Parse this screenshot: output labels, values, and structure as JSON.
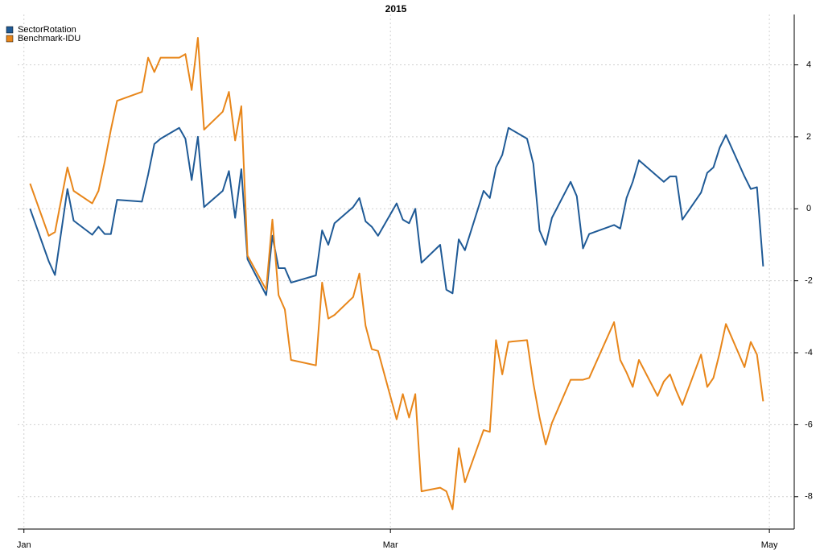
{
  "chart_data": {
    "type": "line",
    "title": "2015",
    "x": [
      2,
      5,
      6,
      8,
      9,
      12,
      13,
      14,
      15,
      16,
      20,
      21,
      22,
      23,
      26,
      27,
      28,
      29,
      30,
      33,
      34,
      35,
      36,
      37,
      40,
      41,
      42,
      43,
      44,
      48,
      49,
      50,
      51,
      54,
      55,
      56,
      57,
      58,
      61,
      62,
      63,
      64,
      65,
      68,
      69,
      70,
      71,
      72,
      75,
      76,
      77,
      78,
      79,
      82,
      83,
      84,
      85,
      86,
      89,
      90,
      91,
      92,
      96,
      97,
      98,
      99,
      100,
      103,
      104,
      105,
      106,
      107,
      110,
      111,
      112,
      113,
      114,
      117,
      118,
      119,
      120
    ],
    "series": [
      {
        "name": "SectorRotation",
        "color": "#1f5a96",
        "values": [
          0,
          -1.46,
          -1.84,
          0.55,
          -0.33,
          -0.72,
          -0.5,
          -0.7,
          -0.7,
          0.25,
          0.2,
          0.95,
          1.8,
          1.95,
          2.25,
          1.95,
          0.8,
          2.0,
          0.05,
          0.5,
          1.05,
          -0.25,
          1.1,
          -1.4,
          -2.4,
          -0.75,
          -1.65,
          -1.65,
          -2.05,
          -1.85,
          -0.6,
          -1.0,
          -0.4,
          0.05,
          0.3,
          -0.35,
          -0.5,
          -0.75,
          0.15,
          -0.3,
          -0.4,
          0,
          -1.5,
          -1.0,
          -2.25,
          -2.35,
          -0.85,
          -1.15,
          0.5,
          0.3,
          1.15,
          1.5,
          2.25,
          1.95,
          1.25,
          -0.6,
          -1.0,
          -0.25,
          0.75,
          0.35,
          -1.1,
          -0.7,
          -0.45,
          -0.55,
          0.3,
          0.75,
          1.35,
          0.9,
          0.75,
          0.9,
          0.9,
          -0.3,
          0.45,
          1.0,
          1.15,
          1.7,
          2.05,
          0.9,
          0.55,
          0.6,
          -1.6
        ]
      },
      {
        "name": "Benchmark-IDU",
        "color": "#e8861a",
        "values": [
          0.7,
          -0.75,
          -0.65,
          1.15,
          0.5,
          0.15,
          0.5,
          1.3,
          2.2,
          3.0,
          3.25,
          4.2,
          3.8,
          4.2,
          4.2,
          4.3,
          3.3,
          4.75,
          2.2,
          2.7,
          3.25,
          1.9,
          2.85,
          -1.3,
          -2.25,
          -0.3,
          -2.4,
          -2.8,
          -4.2,
          -4.35,
          -2.05,
          -3.05,
          -2.95,
          -2.45,
          -1.8,
          -3.25,
          -3.9,
          -3.95,
          -5.85,
          -5.15,
          -5.8,
          -5.15,
          -7.85,
          -7.75,
          -7.85,
          -8.35,
          -6.65,
          -7.6,
          -6.15,
          -6.2,
          -3.65,
          -4.6,
          -3.7,
          -3.65,
          -4.85,
          -5.8,
          -6.55,
          -5.95,
          -4.75,
          -4.75,
          -4.75,
          -4.7,
          -3.15,
          -4.2,
          -4.55,
          -4.95,
          -4.2,
          -5.2,
          -4.8,
          -4.6,
          -5.05,
          -5.45,
          -4.05,
          -4.95,
          -4.7,
          -4.0,
          -3.2,
          -4.4,
          -3.7,
          -4.05,
          -5.35
        ]
      }
    ],
    "xlim": [
      0,
      125
    ],
    "xticks": [
      {
        "value": 1,
        "label": "Jan"
      },
      {
        "value": 60,
        "label": "Mar"
      },
      {
        "value": 121,
        "label": "May"
      }
    ],
    "ylim": [
      -8.9,
      5.4
    ],
    "yticks": [
      -8,
      -6,
      -4,
      -2,
      0,
      2,
      4
    ],
    "grid": true,
    "legend": "top-left"
  }
}
